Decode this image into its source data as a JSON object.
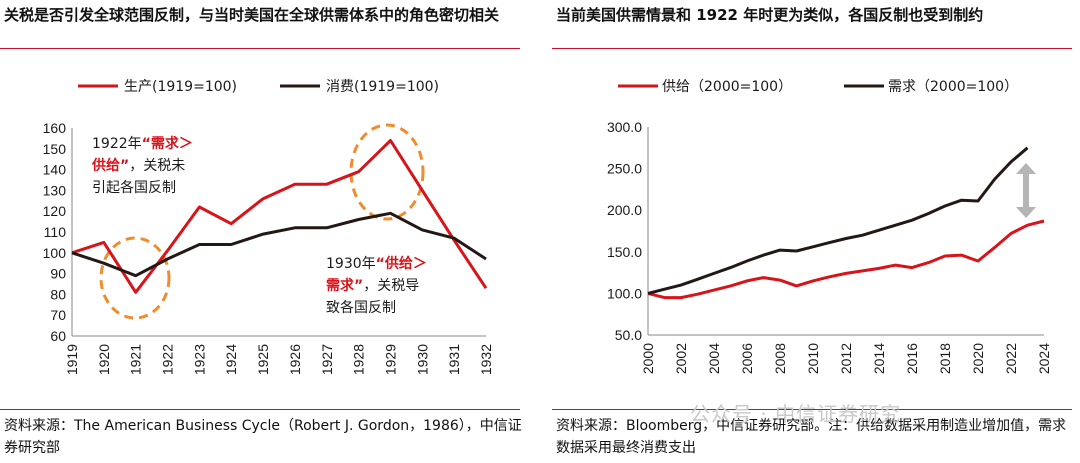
{
  "left": {
    "title": "关税是否引发全球范围反制，与当时美国在全球供需体系中的角色密切相关",
    "source": "资料来源：The American Business Cycle（Robert J. Gordon，1986），中信证券研究部",
    "annotations": [
      {
        "lines": [
          [
            "1922年",
            "“需求＞"
          ],
          [
            "供给”",
            "，关税未"
          ],
          [
            "引起各国反制"
          ]
        ]
      },
      {
        "lines": [
          [
            "1930年",
            "“供给＞"
          ],
          [
            "需求”",
            "，关税导"
          ],
          [
            "致各国反制"
          ]
        ]
      }
    ],
    "colors": {
      "red": "#d7141a",
      "black": "#231815",
      "orange": "#f08c2e"
    },
    "chart_data": {
      "type": "line",
      "categories": [
        "1919",
        "1920",
        "1921",
        "1922",
        "1923",
        "1924",
        "1925",
        "1926",
        "1927",
        "1928",
        "1929",
        "1930",
        "1931",
        "1932"
      ],
      "series": [
        {
          "name": "生产(1919=100)",
          "values": [
            100,
            105,
            81,
            101,
            122,
            114,
            126,
            133,
            133,
            139,
            154,
            130,
            106,
            83
          ]
        },
        {
          "name": "消费(1919=100)",
          "values": [
            100,
            95,
            89,
            97,
            104,
            104,
            109,
            112,
            112,
            116,
            119,
            111,
            107,
            97
          ]
        }
      ],
      "ylim": [
        60,
        160
      ],
      "yticks": [
        60,
        70,
        80,
        90,
        100,
        110,
        120,
        130,
        140,
        150,
        160
      ],
      "legend": "top"
    }
  },
  "right": {
    "title": "当前美国供需情景和 1922 年时更为类似，各国反制也受到制约",
    "source": "资料来源：Bloomberg，中信证券研究部。注：供给数据采用制造业增加值，需求数据采用最终消费支出",
    "watermark": "公众号 · 中信证券研究",
    "chart_data": {
      "type": "line",
      "x": [
        2000,
        2001,
        2002,
        2003,
        2004,
        2005,
        2006,
        2007,
        2008,
        2009,
        2010,
        2011,
        2012,
        2013,
        2014,
        2015,
        2016,
        2017,
        2018,
        2019,
        2020,
        2021,
        2022,
        2023,
        2024
      ],
      "xticks": [
        "2000",
        "2002",
        "2004",
        "2006",
        "2008",
        "2010",
        "2012",
        "2014",
        "2016",
        "2018",
        "2020",
        "2022",
        "2024"
      ],
      "series": [
        {
          "name": "供给（2000=100）",
          "values": [
            100,
            95,
            95,
            99,
            104,
            109,
            115,
            119,
            116,
            109,
            115,
            120,
            124,
            127,
            130,
            134,
            131,
            137,
            145,
            146,
            139,
            155,
            172,
            182,
            187
          ]
        },
        {
          "name": "需求（2000=100）",
          "values": [
            100,
            105,
            110,
            117,
            124,
            131,
            139,
            146,
            152,
            151,
            156,
            161,
            166,
            170,
            176,
            182,
            188,
            196,
            205,
            212,
            211,
            237,
            258,
            275,
            null
          ]
        }
      ],
      "ylim": [
        50,
        300
      ],
      "yticks": [
        "50.0",
        "100.0",
        "150.0",
        "200.0",
        "250.0",
        "300.0"
      ],
      "legend": "top"
    }
  }
}
